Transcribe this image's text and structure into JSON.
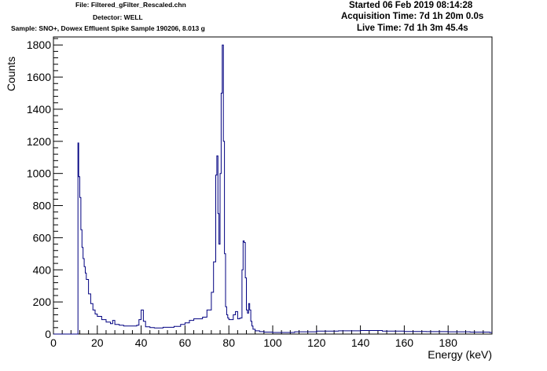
{
  "header": {
    "file": "File: Filtered_gFilter_Rescaled.chn",
    "detector": "Detector: WELL",
    "sample": "Sample: SNO+, Dowex Effluent Spike Sample 190206, 8.013 g",
    "started": "Started 06 Feb 2019 08:14:28",
    "acquisition_time": "Acquisition Time: 7d 1h 20m 0.0s",
    "live_time": "Live Time: 7d 1h 3m 45.4s"
  },
  "chart_data": {
    "type": "line",
    "title": "",
    "xlabel": "Energy (keV)",
    "ylabel": "Counts",
    "xlim": [
      0,
      200
    ],
    "ylim": [
      0,
      1850
    ],
    "x_ticks": [
      0,
      20,
      40,
      60,
      80,
      100,
      120,
      140,
      160,
      180
    ],
    "y_ticks": [
      0,
      200,
      400,
      600,
      800,
      1000,
      1200,
      1400,
      1600,
      1800
    ],
    "grid": false,
    "legend": "none",
    "line_color": "#000080",
    "series": [
      {
        "x": [
          0,
          11.0,
          11.2,
          11.5,
          12,
          12.5,
          13,
          13.5,
          14,
          14.5,
          15,
          16,
          17,
          18,
          19,
          20,
          22,
          24,
          26,
          27,
          28,
          30,
          32,
          35,
          38,
          39,
          40,
          41,
          42,
          44,
          46,
          50,
          55,
          58,
          60,
          62,
          64,
          66,
          68,
          70,
          72,
          73,
          74,
          74.5,
          75,
          75.5,
          76,
          76.5,
          77,
          77.5,
          78,
          78.5,
          79,
          79.5,
          80,
          81,
          82,
          83,
          84,
          85,
          86,
          86.5,
          87,
          87.5,
          88,
          88.5,
          89,
          89.5,
          90,
          90.5,
          91,
          92,
          94,
          96,
          100,
          110,
          120,
          130,
          140,
          150,
          160,
          170,
          180,
          190,
          199
        ],
        "values": [
          0,
          0,
          1190,
          980,
          850,
          650,
          540,
          470,
          420,
          380,
          340,
          250,
          190,
          150,
          125,
          110,
          90,
          75,
          65,
          85,
          60,
          55,
          50,
          50,
          55,
          90,
          150,
          80,
          45,
          40,
          38,
          42,
          48,
          60,
          70,
          85,
          95,
          95,
          105,
          150,
          260,
          450,
          990,
          1110,
          750,
          560,
          1000,
          1500,
          1800,
          1200,
          500,
          170,
          120,
          100,
          90,
          90,
          120,
          140,
          95,
          100,
          400,
          580,
          570,
          350,
          150,
          130,
          190,
          150,
          80,
          50,
          30,
          20,
          15,
          12,
          10,
          14,
          18,
          20,
          22,
          18,
          16,
          15,
          14,
          12,
          10
        ]
      }
    ]
  }
}
